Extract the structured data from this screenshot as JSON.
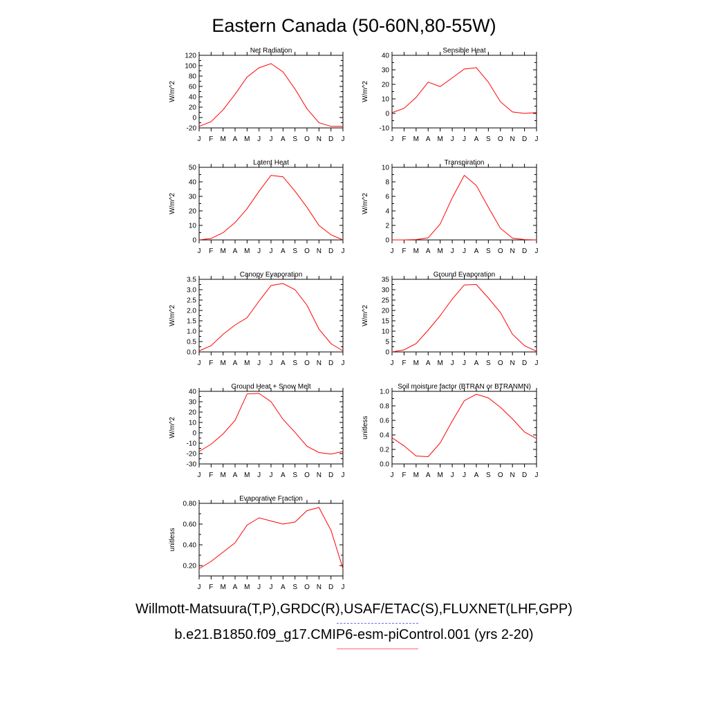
{
  "title": "Eastern Canada (50-60N,80-55W)",
  "months": [
    "J",
    "F",
    "M",
    "A",
    "M",
    "J",
    "J",
    "A",
    "S",
    "O",
    "N",
    "D",
    "J"
  ],
  "colors": {
    "model_line": "#ff0000",
    "obs_dash": "#6b6bff",
    "axis": "#000000"
  },
  "legend": {
    "obs_label": "Willmott-Matsuura(T,P),GRDC(R),USAF/ETAC(S),FLUXNET(LHF,GPP)",
    "model_label": "b.e21.B1850.f09_g17.CMIP6-esm-piControl.001 (yrs 2-20)"
  },
  "chart_data": [
    {
      "type": "line",
      "title": "Net Radiation",
      "ylabel": "W/m^2",
      "ylim": [
        -20,
        120
      ],
      "yticks": [
        -20,
        0,
        20,
        40,
        60,
        80,
        100,
        120
      ],
      "ytick_labels": [
        "-20",
        "0",
        "20",
        "40",
        "60",
        "80",
        "100",
        "120"
      ],
      "values": [
        -17,
        -8,
        15,
        45,
        78,
        96,
        104,
        88,
        55,
        17,
        -10,
        -17,
        -17
      ]
    },
    {
      "type": "line",
      "title": "Sensible Heat",
      "ylabel": "W/m^2",
      "ylim": [
        -10,
        40
      ],
      "yticks": [
        -10,
        0,
        10,
        20,
        30,
        40
      ],
      "ytick_labels": [
        "-10",
        "0",
        "10",
        "20",
        "30",
        "40"
      ],
      "values": [
        0.5,
        3.5,
        11,
        21.5,
        18.5,
        24.5,
        30.5,
        31.5,
        21.5,
        8,
        1,
        0,
        0.5
      ]
    },
    {
      "type": "line",
      "title": "Latent Heat",
      "ylabel": "W/m^2",
      "ylim": [
        0,
        50
      ],
      "yticks": [
        0,
        10,
        20,
        30,
        40,
        50
      ],
      "ytick_labels": [
        "0",
        "10",
        "20",
        "30",
        "40",
        "50"
      ],
      "values": [
        0,
        1,
        5,
        12,
        21.5,
        33.5,
        44.5,
        43.5,
        33.5,
        22.5,
        10,
        3.5,
        0
      ]
    },
    {
      "type": "line",
      "title": "Transpiration",
      "ylabel": "W/m^2",
      "ylim": [
        0,
        10
      ],
      "yticks": [
        0,
        2,
        4,
        6,
        8,
        10
      ],
      "ytick_labels": [
        "0",
        "2",
        "4",
        "6",
        "8",
        "10"
      ],
      "values": [
        0,
        0,
        0.05,
        0.3,
        2.2,
        5.8,
        8.9,
        7.5,
        4.5,
        1.6,
        0.25,
        0.05,
        0
      ]
    },
    {
      "type": "line",
      "title": "Canopy Evaporation",
      "ylabel": "W/m^2",
      "ylim": [
        0,
        3.5
      ],
      "yticks": [
        0,
        0.5,
        1,
        1.5,
        2,
        2.5,
        3,
        3.5
      ],
      "ytick_labels": [
        "0.0",
        "0.5",
        "1.0",
        "1.5",
        "2.0",
        "2.5",
        "3.0",
        "3.5"
      ],
      "values": [
        0.05,
        0.3,
        0.85,
        1.3,
        1.65,
        2.45,
        3.2,
        3.3,
        3,
        2.25,
        1.1,
        0.4,
        0.05
      ]
    },
    {
      "type": "line",
      "title": "Ground Evaporation",
      "ylabel": "W/m^2",
      "ylim": [
        0,
        35
      ],
      "yticks": [
        0,
        5,
        10,
        15,
        20,
        25,
        30,
        35
      ],
      "ytick_labels": [
        "0",
        "5",
        "10",
        "15",
        "20",
        "25",
        "30",
        "35"
      ],
      "values": [
        0,
        1,
        4,
        10.5,
        17.5,
        25.5,
        32.3,
        32.5,
        26,
        19,
        8.5,
        3,
        0.3
      ]
    },
    {
      "type": "line",
      "title": "Ground Heat + Snow Melt",
      "ylabel": "W/m^2",
      "ylim": [
        -30,
        40
      ],
      "yticks": [
        -30,
        -20,
        -10,
        0,
        10,
        20,
        30,
        40
      ],
      "ytick_labels": [
        "-30",
        "-20",
        "-10",
        "0",
        "10",
        "20",
        "30",
        "40"
      ],
      "values": [
        -18,
        -11,
        -1,
        12,
        37.5,
        38,
        30,
        13,
        0.5,
        -13,
        -19,
        -20.5,
        -18
      ]
    },
    {
      "type": "line",
      "title": "Soil moisture factor (BTRAN or BTRANMN)",
      "ylabel": "unitless",
      "ylim": [
        0,
        1
      ],
      "yticks": [
        0,
        0.2,
        0.4,
        0.6,
        0.8,
        1
      ],
      "ytick_labels": [
        "0.0",
        "0.2",
        "0.4",
        "0.6",
        "0.8",
        "1.0"
      ],
      "values": [
        0.36,
        0.25,
        0.11,
        0.1,
        0.29,
        0.59,
        0.87,
        0.96,
        0.91,
        0.78,
        0.62,
        0.44,
        0.35
      ]
    },
    {
      "type": "line",
      "title": "Evaporative Fraction",
      "ylabel": "unitless",
      "ylim": [
        0.1,
        0.8
      ],
      "yticks": [
        0.2,
        0.4,
        0.6,
        0.8
      ],
      "ytick_labels": [
        "0.20",
        "0.40",
        "0.60",
        "0.80"
      ],
      "values": [
        0.17,
        0.24,
        0.33,
        0.42,
        0.59,
        0.66,
        0.63,
        0.6,
        0.62,
        0.73,
        0.76,
        0.54,
        0.17
      ]
    }
  ]
}
